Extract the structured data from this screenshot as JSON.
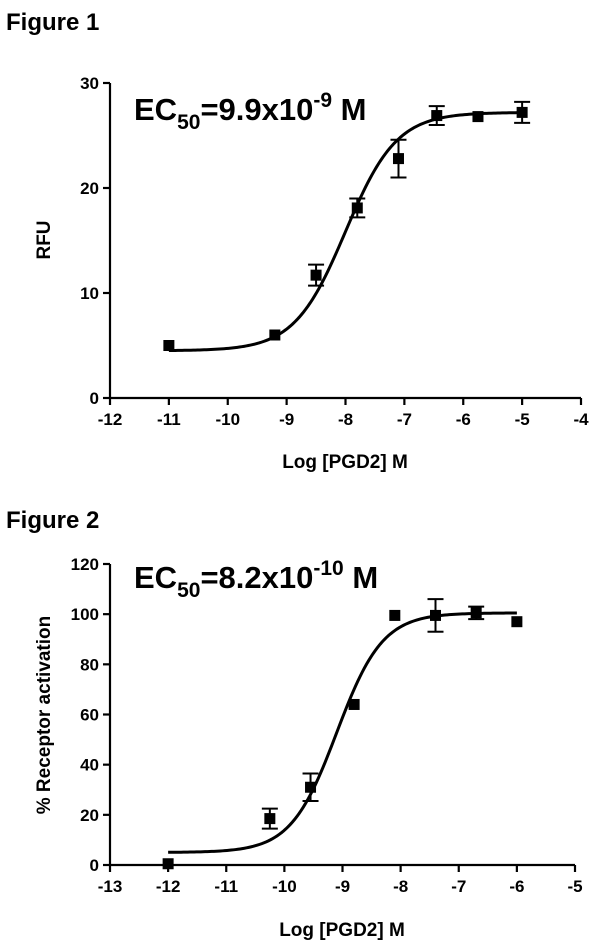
{
  "chart_data": [
    {
      "type": "scatter",
      "figure_label": "Figure 1",
      "annotation": {
        "prefix": "EC",
        "subscript": "50",
        "value": "=9.9x10",
        "exponent": "-9",
        "unit": " M"
      },
      "xlabel": "Log [PGD2] M",
      "ylabel": "RFU",
      "xlim": [
        -12,
        -4
      ],
      "ylim": [
        0,
        30
      ],
      "xticks": [
        -12,
        -11,
        -10,
        -9,
        -8,
        -7,
        -6,
        -5,
        -4
      ],
      "yticks": [
        0,
        10,
        20,
        30
      ],
      "grid": false,
      "fit": {
        "model": "sigmoidal dose-response",
        "bottom": 4.5,
        "top": 27.2,
        "log_ec50": -8.0,
        "hill": 1.0
      },
      "series": [
        {
          "points": [
            {
              "x": -11.0,
              "y": 5.0,
              "err": 0.0
            },
            {
              "x": -9.2,
              "y": 6.0,
              "err": 0.0
            },
            {
              "x": -8.5,
              "y": 11.7,
              "err": 1.0
            },
            {
              "x": -7.8,
              "y": 18.1,
              "err": 0.9
            },
            {
              "x": -7.1,
              "y": 22.8,
              "err": 1.8
            },
            {
              "x": -6.45,
              "y": 26.9,
              "err": 0.9
            },
            {
              "x": -5.75,
              "y": 26.8,
              "err": 0.0
            },
            {
              "x": -5.0,
              "y": 27.2,
              "err": 1.0
            }
          ]
        }
      ]
    },
    {
      "type": "scatter",
      "figure_label": "Figure 2",
      "annotation": {
        "prefix": "EC",
        "subscript": "50",
        "value": "=8.2x10",
        "exponent": "-10",
        "unit": " M"
      },
      "xlabel": "Log [PGD2] M",
      "ylabel": "% Receptor activation",
      "xlim": [
        -13,
        -5
      ],
      "ylim": [
        0,
        120
      ],
      "xticks": [
        -13,
        -12,
        -11,
        -10,
        -9,
        -8,
        -7,
        -6,
        -5
      ],
      "yticks": [
        0,
        20,
        40,
        60,
        80,
        100,
        120
      ],
      "grid": false,
      "fit": {
        "model": "sigmoidal dose-response",
        "bottom": 5,
        "top": 100.5,
        "log_ec50": -9.1,
        "hill": 1.1
      },
      "series": [
        {
          "points": [
            {
              "x": -12.0,
              "y": 0.5,
              "err": 0.0
            },
            {
              "x": -10.25,
              "y": 18.5,
              "err": 4.0
            },
            {
              "x": -9.55,
              "y": 31.0,
              "err": 5.5
            },
            {
              "x": -8.8,
              "y": 64.0,
              "err": 0.0
            },
            {
              "x": -8.1,
              "y": 99.5,
              "err": 0.0
            },
            {
              "x": -7.4,
              "y": 99.5,
              "err": 6.5
            },
            {
              "x": -6.7,
              "y": 100.5,
              "err": 2.5
            },
            {
              "x": -6.0,
              "y": 97.0,
              "err": 0.0
            }
          ]
        }
      ]
    }
  ]
}
